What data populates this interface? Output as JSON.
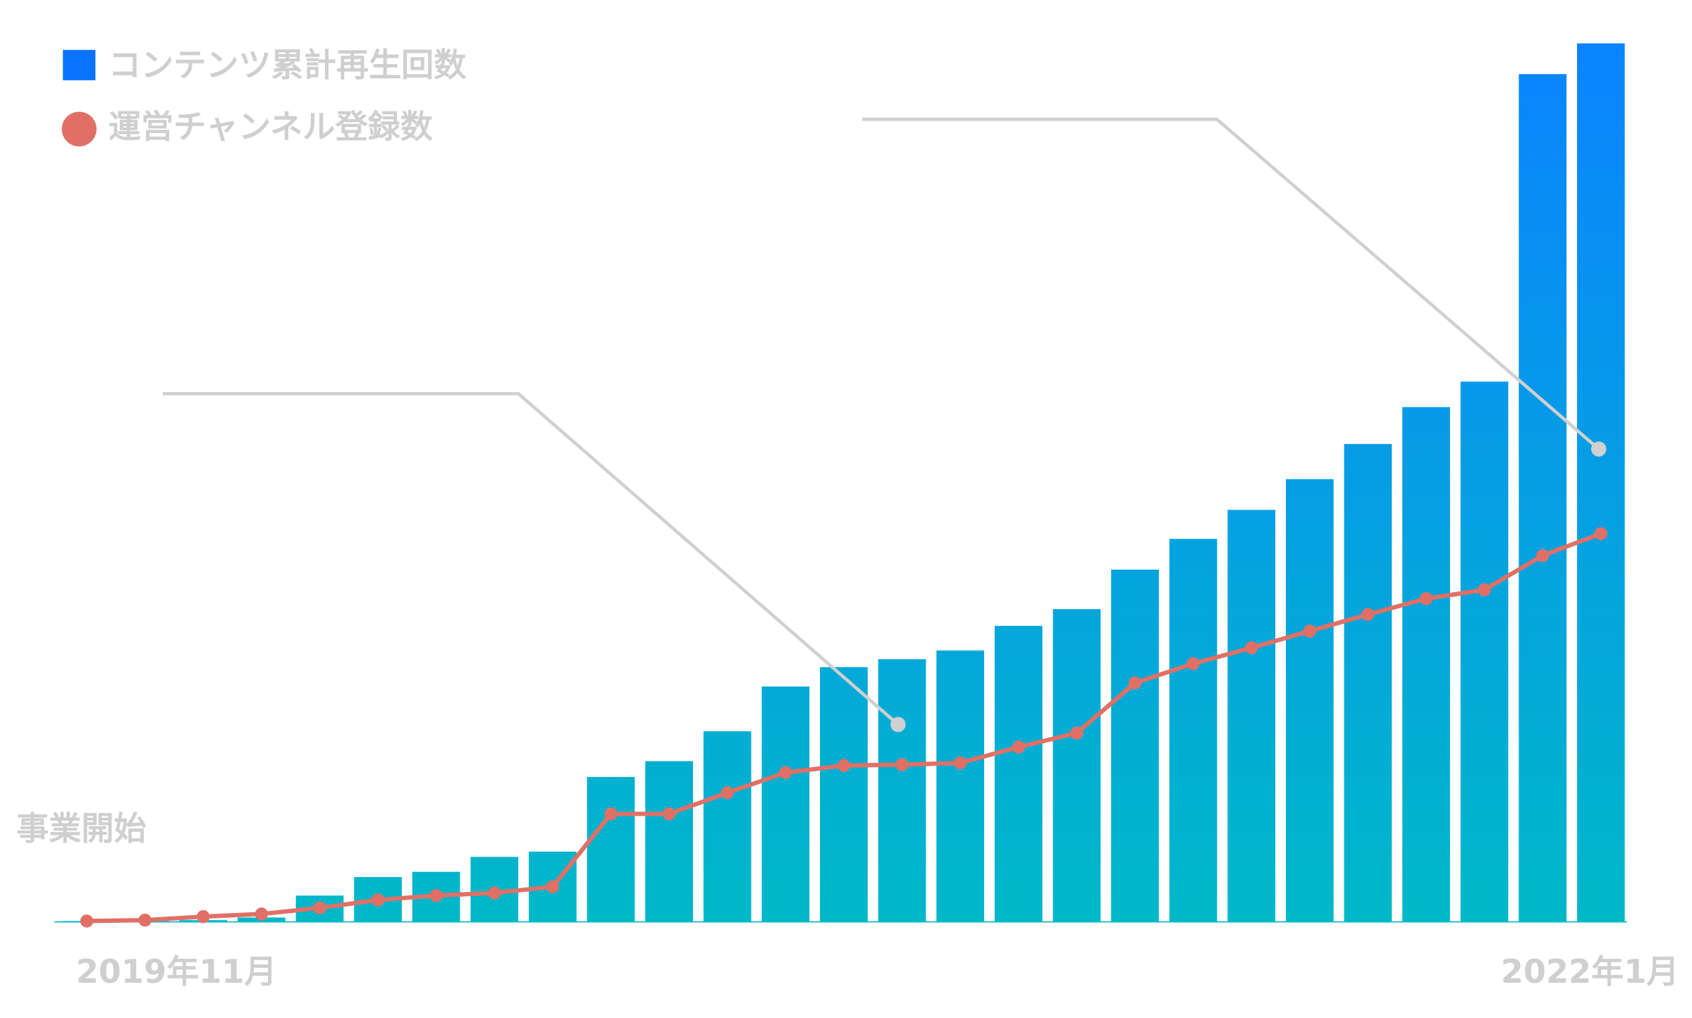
{
  "chart_data": {
    "type": "bar_line",
    "categories": [
      "2019年11月",
      null,
      null,
      null,
      null,
      null,
      null,
      null,
      null,
      null,
      null,
      null,
      null,
      null,
      null,
      null,
      null,
      null,
      null,
      null,
      null,
      null,
      null,
      null,
      null,
      null,
      "2022年1月"
    ],
    "series": [
      {
        "name": "コンテンツ累計再生回数",
        "color": "#0a74ff",
        "kind": "bar",
        "values": [
          0.1,
          0.1,
          0.2,
          0.5,
          3.0,
          5.1,
          5.7,
          7.4,
          8.0,
          16.5,
          18.3,
          21.7,
          26.8,
          29.0,
          29.9,
          30.9,
          33.7,
          35.6,
          40.1,
          43.6,
          46.9,
          50.4,
          54.4,
          58.6,
          61.5,
          96.5,
          100
        ]
      },
      {
        "name": "運営チャンネル登録数",
        "color": "#e07066",
        "kind": "line",
        "values": [
          0.1,
          0.2,
          0.6,
          0.9,
          1.6,
          2.5,
          3.0,
          3.3,
          4.0,
          12.3,
          12.3,
          14.7,
          17.0,
          17.8,
          17.9,
          18.1,
          19.9,
          21.5,
          27.2,
          29.4,
          31.2,
          33.1,
          35.0,
          36.8,
          37.8,
          41.7,
          44.2
        ]
      }
    ],
    "annotation": "事業開始",
    "ylim": [
      0,
      100
    ]
  }
}
